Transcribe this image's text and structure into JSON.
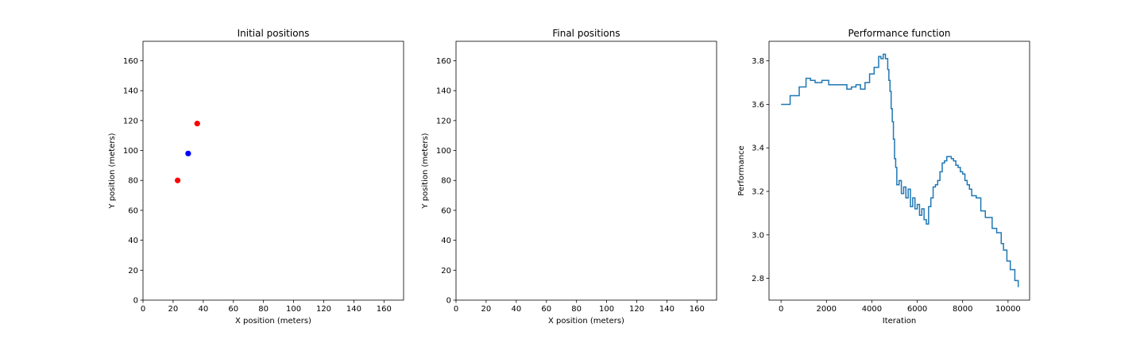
{
  "chart_data": [
    {
      "type": "scatter",
      "title": "Initial positions",
      "xlabel": "X position (meters)",
      "ylabel": "Y position (meters)",
      "xlim": [
        0,
        173
      ],
      "ylim": [
        0,
        173
      ],
      "xticks": [
        0,
        20,
        40,
        60,
        80,
        100,
        120,
        140,
        160
      ],
      "yticks": [
        0,
        20,
        40,
        60,
        80,
        100,
        120,
        140,
        160
      ],
      "grid": false,
      "series": [
        {
          "color": "#ff0000",
          "points": [
            [
              36,
              118
            ],
            [
              23,
              80
            ]
          ]
        },
        {
          "color": "#0000ff",
          "points": [
            [
              30,
              98
            ]
          ]
        }
      ]
    },
    {
      "type": "scatter",
      "title": "Final positions",
      "xlabel": "X position (meters)",
      "ylabel": "Y position (meters)",
      "xlim": [
        0,
        173
      ],
      "ylim": [
        0,
        173
      ],
      "xticks": [
        0,
        20,
        40,
        60,
        80,
        100,
        120,
        140,
        160
      ],
      "yticks": [
        0,
        20,
        40,
        60,
        80,
        100,
        120,
        140,
        160
      ],
      "grid": false,
      "series": []
    },
    {
      "type": "line",
      "title": "Performance function",
      "xlabel": "Iteration",
      "ylabel": "Performance",
      "xlim": [
        -530,
        10950
      ],
      "ylim": [
        2.7,
        3.89
      ],
      "xticks": [
        0,
        2000,
        4000,
        6000,
        8000,
        10000
      ],
      "yticks": [
        2.8,
        3.0,
        3.2,
        3.4,
        3.6,
        3.8
      ],
      "ytick_labels": [
        "2.8",
        "3.0",
        "3.2",
        "3.4",
        "3.6",
        "3.8"
      ],
      "grid": false,
      "step": true,
      "series": [
        {
          "color": "#1f77b4",
          "x": [
            0,
            200,
            400,
            800,
            1100,
            1300,
            1500,
            1800,
            2100,
            2400,
            2700,
            2900,
            3100,
            3300,
            3500,
            3700,
            3900,
            4100,
            4300,
            4400,
            4500,
            4600,
            4700,
            4750,
            4800,
            4850,
            4900,
            4950,
            5000,
            5050,
            5100,
            5200,
            5300,
            5400,
            5500,
            5600,
            5700,
            5800,
            5900,
            6000,
            6100,
            6200,
            6300,
            6400,
            6500,
            6600,
            6700,
            6800,
            6900,
            7000,
            7100,
            7200,
            7300,
            7400,
            7500,
            7600,
            7700,
            7800,
            7900,
            8000,
            8100,
            8200,
            8300,
            8400,
            8500,
            8600,
            8800,
            9000,
            9300,
            9500,
            9700,
            9800,
            9950,
            10100,
            10300,
            10450
          ],
          "y": [
            3.6,
            3.6,
            3.64,
            3.68,
            3.72,
            3.71,
            3.7,
            3.71,
            3.69,
            3.69,
            3.69,
            3.67,
            3.68,
            3.69,
            3.67,
            3.7,
            3.74,
            3.77,
            3.82,
            3.81,
            3.83,
            3.81,
            3.76,
            3.71,
            3.66,
            3.58,
            3.52,
            3.44,
            3.35,
            3.31,
            3.23,
            3.25,
            3.19,
            3.22,
            3.17,
            3.21,
            3.13,
            3.17,
            3.12,
            3.14,
            3.09,
            3.12,
            3.07,
            3.05,
            3.13,
            3.17,
            3.22,
            3.23,
            3.25,
            3.29,
            3.33,
            3.34,
            3.36,
            3.36,
            3.35,
            3.34,
            3.32,
            3.31,
            3.29,
            3.28,
            3.25,
            3.23,
            3.21,
            3.18,
            3.18,
            3.17,
            3.11,
            3.08,
            3.03,
            3.01,
            2.96,
            2.93,
            2.88,
            2.84,
            2.79,
            2.76
          ]
        }
      ]
    }
  ]
}
